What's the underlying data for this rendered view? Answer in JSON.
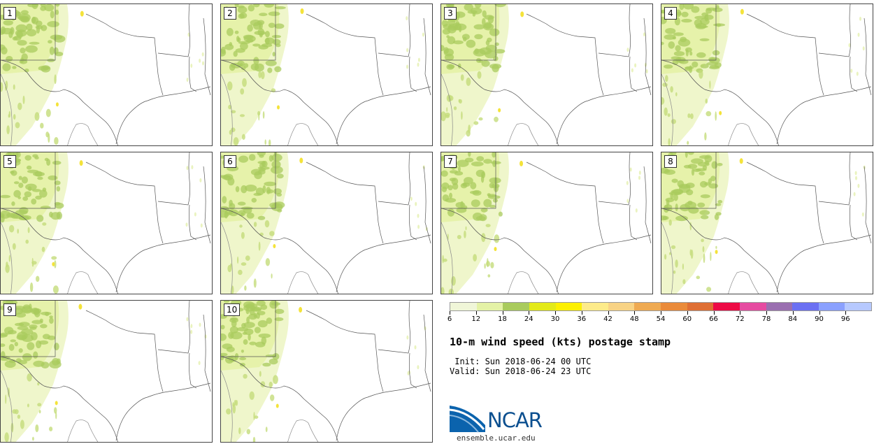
{
  "panels": [
    {
      "label": "1"
    },
    {
      "label": "2"
    },
    {
      "label": "3"
    },
    {
      "label": "4"
    },
    {
      "label": "5"
    },
    {
      "label": "6"
    },
    {
      "label": "7"
    },
    {
      "label": "8"
    },
    {
      "label": "9"
    },
    {
      "label": "10"
    }
  ],
  "legend": {
    "colors": [
      "#f0f6d8",
      "#e4f2a6",
      "#a9cb5d",
      "#e3ea19",
      "#fcf002",
      "#fdeb8a",
      "#f8d385",
      "#efaa52",
      "#ea8b3a",
      "#df6f34",
      "#ed0a45",
      "#e64ba1",
      "#9a6fb0",
      "#6b70f2",
      "#8ba1ff",
      "#b7c9ff"
    ],
    "tick_labels": [
      "6",
      "12",
      "18",
      "24",
      "30",
      "36",
      "42",
      "48",
      "54",
      "60",
      "66",
      "72",
      "78",
      "84",
      "90",
      "96"
    ]
  },
  "title": "10-m wind speed (kts) postage stamp",
  "init_line": " Init: Sun 2018-06-24 00 UTC",
  "valid_line": "Valid: Sun 2018-06-24 23 UTC",
  "logo_text": "NCAR",
  "url": "ensemble.ucar.edu"
}
